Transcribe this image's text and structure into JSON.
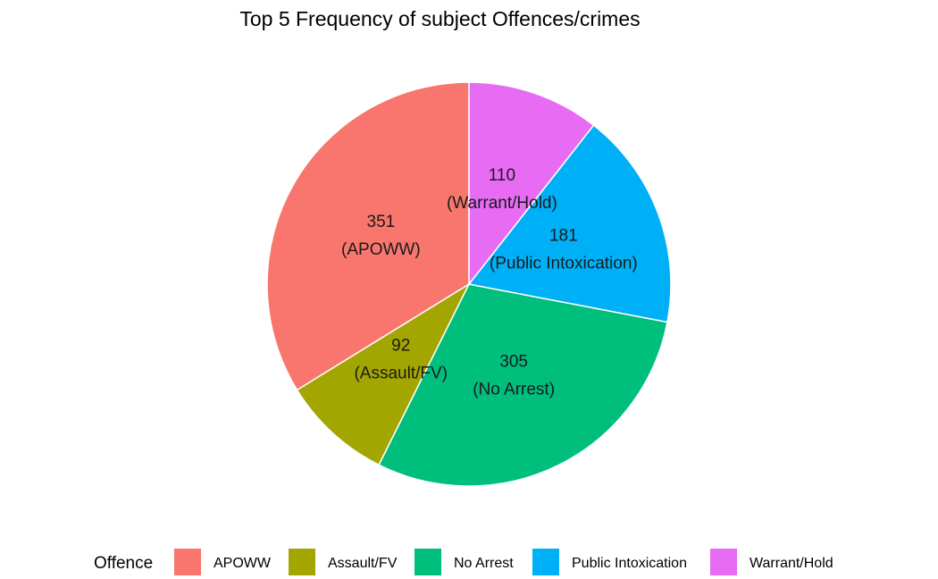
{
  "chart_data": {
    "type": "pie",
    "title": "Top 5 Frequency of subject Offences/crimes",
    "legend_title": "Offence",
    "legend_position": "bottom",
    "slices": [
      {
        "label": "APOWW",
        "value": 351,
        "color": "#F8766D"
      },
      {
        "label": "Assault/FV",
        "value": 92,
        "color": "#A3A500"
      },
      {
        "label": "No Arrest",
        "value": 305,
        "color": "#00BF7D"
      },
      {
        "label": "Public Intoxication",
        "value": 181,
        "color": "#00B0F6"
      },
      {
        "label": "Warrant/Hold",
        "value": 110,
        "color": "#E76BF3"
      }
    ]
  }
}
